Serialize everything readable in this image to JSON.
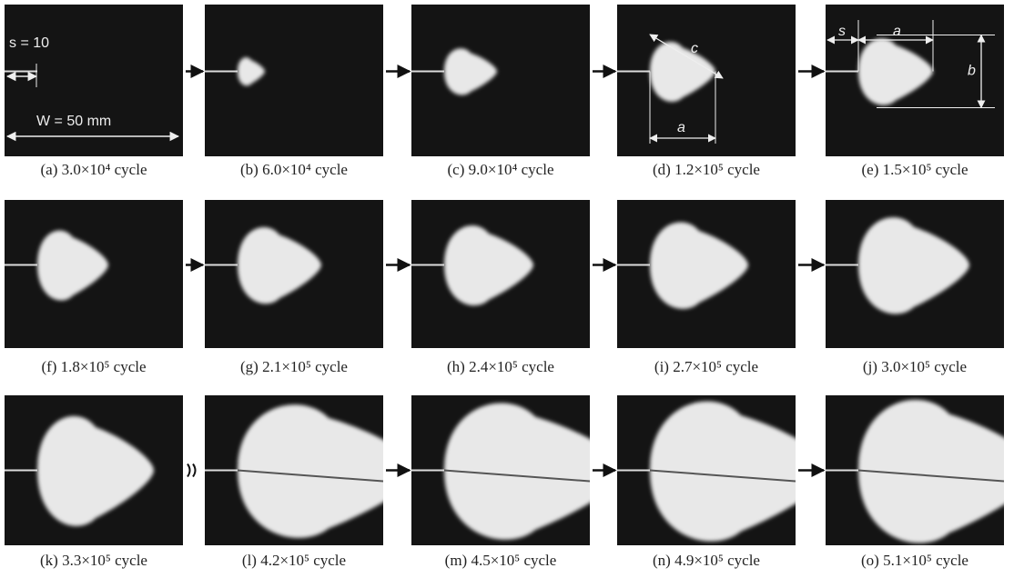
{
  "panels": [
    {
      "caption": "(a) 3.0×10⁴ cycle"
    },
    {
      "caption": "(b) 6.0×10⁴ cycle"
    },
    {
      "caption": "(c) 9.0×10⁴ cycle"
    },
    {
      "caption": "(d) 1.2×10⁵ cycle"
    },
    {
      "caption": "(e) 1.5×10⁵ cycle"
    },
    {
      "caption": "(f) 1.8×10⁵ cycle"
    },
    {
      "caption": "(g) 2.1×10⁵ cycle"
    },
    {
      "caption": "(h) 2.4×10⁵ cycle"
    },
    {
      "caption": "(i) 2.7×10⁵ cycle"
    },
    {
      "caption": "(j) 3.0×10⁵ cycle"
    },
    {
      "caption": "(k) 3.3×10⁵ cycle"
    },
    {
      "caption": "(l) 4.2×10⁵ cycle"
    },
    {
      "caption": "(m) 4.5×10⁵ cycle"
    },
    {
      "caption": "(n) 4.9×10⁵ cycle"
    },
    {
      "caption": "(o) 5.1×10⁵ cycle"
    }
  ],
  "annotations": {
    "panel_a": [
      "s = 10",
      "W = 50 mm"
    ],
    "panel_d": [
      "c",
      "a"
    ],
    "panel_e": [
      "s",
      "a",
      "b"
    ]
  }
}
